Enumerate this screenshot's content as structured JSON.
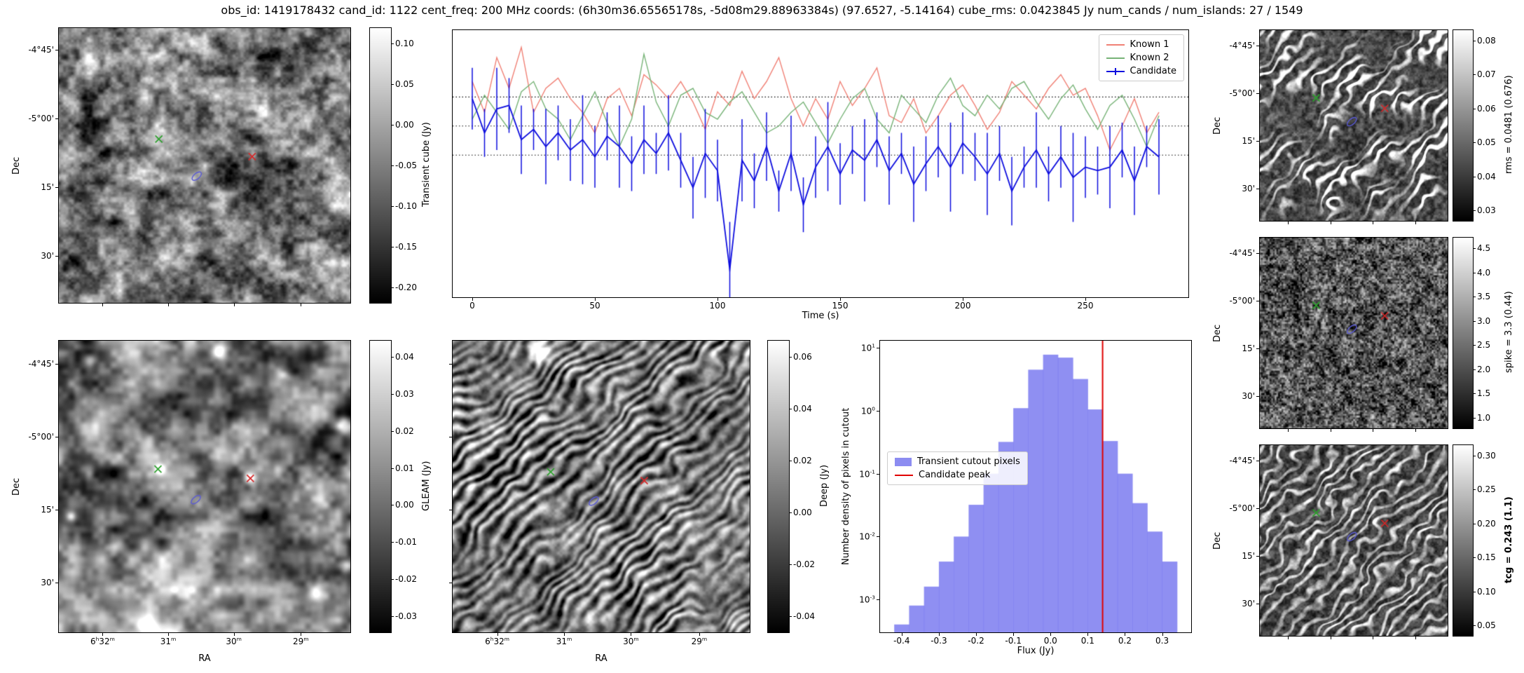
{
  "header": {
    "title": "obs_id: 1419178432 cand_id: 1122 cent_freq: 200 MHz coords: (6h30m36.65565178s, -5d08m29.88963384s) (97.6527, -5.14164) cube_rms: 0.0423845 Jy num_cands / num_islands: 27 / 1549"
  },
  "axis_labels": {
    "ra": "RA",
    "dec": "Dec"
  },
  "ra_ticks": [
    "6h32m",
    "31m",
    "30m",
    "29m"
  ],
  "dec_ticks": [
    "-4°45'",
    "-5°00'",
    "15'",
    "30'"
  ],
  "marker_colors": {
    "green_x": "#2ca02c",
    "red_x": "#d62728",
    "blue_contour": "#5a5ad6"
  },
  "colorbars": {
    "transient": {
      "label": "Transient cube (Jy)",
      "ticks": [
        "0.10",
        "0.05",
        "0.00",
        "-0.05",
        "-0.10",
        "-0.15",
        "-0.20"
      ]
    },
    "gleam": {
      "label": "GLEAM (Jy)",
      "ticks": [
        "0.04",
        "0.03",
        "0.02",
        "0.01",
        "0.00",
        "-0.01",
        "-0.02",
        "-0.03"
      ]
    },
    "deep": {
      "label": "Deep (Jy)",
      "ticks": [
        "0.06",
        "0.04",
        "0.02",
        "0.00",
        "-0.02",
        "-0.04"
      ]
    },
    "rms": {
      "label": "rms = 0.0481 (0.676)",
      "ticks": [
        "0.08",
        "0.07",
        "0.06",
        "0.05",
        "0.04",
        "0.03"
      ]
    },
    "spike": {
      "label": "spike = 3.3 (0.44)",
      "ticks": [
        "4.5",
        "4.0",
        "3.5",
        "3.0",
        "2.5",
        "2.0",
        "1.5",
        "1.0"
      ]
    },
    "tcg": {
      "label": "tcg = 0.243 (1.1)",
      "ticks": [
        "0.30",
        "0.25",
        "0.20",
        "0.15",
        "0.10",
        "0.05"
      ]
    }
  },
  "chart_data": [
    {
      "type": "line",
      "title": "",
      "xlabel": "Time (s)",
      "ylabel": "",
      "xlim": [
        -8,
        292
      ],
      "ylim": [
        -0.25,
        0.14
      ],
      "x_ticks": [
        0,
        50,
        100,
        150,
        200,
        250
      ],
      "hlines": [
        0.0423845,
        0,
        -0.0423845
      ],
      "legend_position": "upper right",
      "x": [
        0,
        5,
        10,
        15,
        20,
        25,
        30,
        35,
        40,
        45,
        50,
        55,
        60,
        65,
        70,
        75,
        80,
        85,
        90,
        95,
        100,
        105,
        110,
        115,
        120,
        125,
        130,
        135,
        140,
        145,
        150,
        155,
        160,
        165,
        170,
        175,
        180,
        185,
        190,
        195,
        200,
        205,
        210,
        215,
        220,
        225,
        230,
        235,
        240,
        245,
        250,
        255,
        260,
        265,
        270,
        275,
        280
      ],
      "series": [
        {
          "name": "Known 1",
          "color": "#f08075",
          "values": [
            0.065,
            0.02,
            0.1,
            0.055,
            0.115,
            0.02,
            0.055,
            0.07,
            0.04,
            0.02,
            -0.01,
            0.04,
            0.055,
            0.015,
            0.075,
            0.06,
            0.04,
            0.065,
            0.035,
            -0.005,
            0.05,
            0.03,
            0.08,
            0.04,
            0.065,
            0.1,
            0.04,
            0.0,
            0.04,
            0.01,
            0.065,
            0.03,
            0.055,
            0.085,
            0.015,
            0.005,
            0.04,
            -0.01,
            0.015,
            0.045,
            0.06,
            0.03,
            -0.005,
            0.02,
            0.065,
            0.045,
            0.025,
            0.055,
            0.075,
            0.045,
            0.055,
            0.015,
            -0.035,
            0.0,
            0.04,
            -0.01,
            0.02
          ]
        },
        {
          "name": "Known 2",
          "color": "#77b377",
          "values": [
            0.01,
            0.045,
            0.02,
            -0.005,
            0.05,
            0.065,
            0.025,
            0.01,
            -0.02,
            0.015,
            0.05,
            0.005,
            -0.03,
            0.01,
            0.105,
            0.035,
            0.0,
            0.045,
            0.055,
            0.02,
            0.01,
            0.035,
            0.05,
            0.02,
            -0.01,
            0.0,
            0.02,
            0.035,
            0.005,
            -0.025,
            0.01,
            0.04,
            0.055,
            0.01,
            -0.01,
            0.045,
            0.025,
            0.005,
            0.045,
            0.07,
            0.03,
            0.015,
            0.045,
            0.025,
            0.055,
            0.065,
            0.035,
            0.01,
            0.04,
            0.06,
            0.025,
            -0.005,
            0.03,
            0.045,
            0.01,
            -0.03,
            0.015
          ]
        },
        {
          "name": "Candidate",
          "color": "#0d0dde",
          "values": [
            0.04,
            -0.01,
            0.025,
            0.03,
            -0.02,
            -0.005,
            -0.03,
            -0.01,
            -0.035,
            -0.02,
            -0.045,
            -0.015,
            -0.03,
            -0.055,
            -0.02,
            -0.04,
            -0.01,
            -0.05,
            -0.09,
            -0.04,
            -0.065,
            -0.21,
            -0.05,
            -0.08,
            -0.03,
            -0.095,
            -0.04,
            -0.115,
            -0.06,
            -0.03,
            -0.07,
            -0.035,
            -0.05,
            -0.02,
            -0.065,
            -0.04,
            -0.085,
            -0.055,
            -0.03,
            -0.06,
            -0.025,
            -0.045,
            -0.07,
            -0.04,
            -0.095,
            -0.06,
            -0.035,
            -0.07,
            -0.045,
            -0.075,
            -0.06,
            -0.065,
            -0.06,
            -0.035,
            -0.08,
            -0.03,
            -0.045
          ],
          "yerr": [
            0.045,
            0.035,
            0.06,
            0.04,
            0.05,
            0.03,
            0.055,
            0.04,
            0.045,
            0.065,
            0.045,
            0.035,
            0.06,
            0.04,
            0.05,
            0.03,
            0.055,
            0.04,
            0.045,
            0.065,
            0.045,
            0.07,
            0.06,
            0.04,
            0.05,
            0.03,
            0.055,
            0.04,
            0.045,
            0.065,
            0.045,
            0.035,
            0.06,
            0.04,
            0.05,
            0.03,
            0.055,
            0.04,
            0.045,
            0.065,
            0.045,
            0.035,
            0.06,
            0.04,
            0.05,
            0.03,
            0.055,
            0.04,
            0.045,
            0.065,
            0.045,
            0.035,
            0.06,
            0.04,
            0.05,
            0.03,
            0.055
          ]
        }
      ]
    },
    {
      "type": "bar",
      "name": "flux-histogram",
      "xlabel": "Flux (Jy)",
      "ylabel": "Number density of pixels in cutout",
      "y_scale": "log",
      "xlim": [
        -0.458,
        0.378
      ],
      "ylim": [
        0.0003,
        13
      ],
      "x_ticks": [
        "-0.4",
        "-0.3",
        "-0.2",
        "-0.1",
        "0.0",
        "0.1",
        "0.2",
        "0.3"
      ],
      "y_ticks": [
        10,
        1,
        0.1,
        0.01,
        0.001
      ],
      "bin_edges": [
        -0.42,
        -0.38,
        -0.34,
        -0.3,
        -0.26,
        -0.22,
        -0.18,
        -0.14,
        -0.1,
        -0.06,
        -0.02,
        0.02,
        0.06,
        0.1,
        0.14,
        0.18,
        0.22,
        0.26,
        0.3,
        0.34
      ],
      "values": [
        0.0004,
        0.0008,
        0.0016,
        0.004,
        0.01,
        0.032,
        0.1,
        0.32,
        1.1,
        4.5,
        7.8,
        7.0,
        3.2,
        1.05,
        0.33,
        0.1,
        0.034,
        0.012,
        0.004
      ],
      "bar_color": "#6f6fee",
      "line_color": "#e00000",
      "candidate_peak": 0.14,
      "legend": [
        "Transient cutout pixels",
        "Candidate peak"
      ]
    }
  ]
}
